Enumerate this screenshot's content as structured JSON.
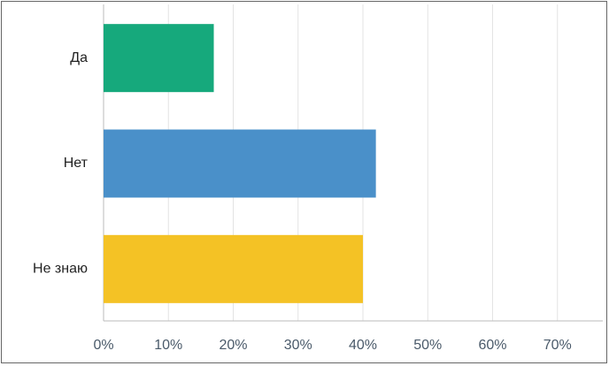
{
  "chart_data": {
    "type": "bar",
    "orientation": "horizontal",
    "categories": [
      "Да",
      "Нет",
      "Не знаю"
    ],
    "values": [
      17,
      42,
      40
    ],
    "colors": [
      "#16a97c",
      "#4a90c9",
      "#f4c225"
    ],
    "xlim": [
      0,
      77
    ],
    "xticks": [
      {
        "value": 0,
        "label": "0%"
      },
      {
        "value": 10,
        "label": "10%"
      },
      {
        "value": 20,
        "label": "20%"
      },
      {
        "value": 30,
        "label": "30%"
      },
      {
        "value": 40,
        "label": "40%"
      },
      {
        "value": 50,
        "label": "50%"
      },
      {
        "value": 60,
        "label": "60%"
      },
      {
        "value": 70,
        "label": "70%"
      }
    ],
    "grid": true
  }
}
